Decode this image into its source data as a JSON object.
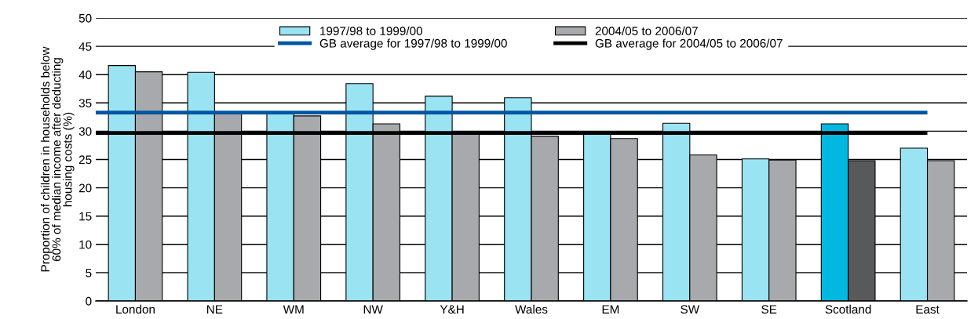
{
  "chart_data": {
    "type": "bar",
    "ylabel": "Proportion of children in households below\n60% of median income after deducting\nhousing costs (%)",
    "categories": [
      "London",
      "NE",
      "WM",
      "NW",
      "Y&H",
      "Wales",
      "EM",
      "SW",
      "SE",
      "Scotland",
      "East"
    ],
    "series": [
      {
        "name": "1997/98 to 1999/00",
        "color": "#9ae3f3",
        "colors": [
          "#9ae3f3",
          "#9ae3f3",
          "#9ae3f3",
          "#9ae3f3",
          "#9ae3f3",
          "#9ae3f3",
          "#9ae3f3",
          "#9ae3f3",
          "#9ae3f3",
          "#00b8e0",
          "#9ae3f3"
        ],
        "values": [
          41.6,
          40.4,
          33.3,
          38.4,
          36.2,
          35.9,
          29.7,
          31.4,
          25.1,
          31.3,
          27.0
        ]
      },
      {
        "name": "2004/05 to 2006/07",
        "color": "#a8a9ad",
        "colors": [
          "#a8a9ad",
          "#a8a9ad",
          "#a8a9ad",
          "#a8a9ad",
          "#a8a9ad",
          "#a8a9ad",
          "#a8a9ad",
          "#a8a9ad",
          "#a8a9ad",
          "#58595b",
          "#a8a9ad"
        ],
        "values": [
          40.5,
          33.3,
          32.7,
          31.3,
          29.7,
          29.1,
          28.7,
          25.8,
          24.9,
          24.8,
          24.8
        ]
      }
    ],
    "ref_lines": [
      {
        "axis": "y",
        "value": 33.3,
        "label": "GB average for 1997/98 to 1999/00",
        "color": "#0055a0"
      },
      {
        "axis": "y",
        "value": 29.7,
        "label": "GB average for 2004/05 to 2006/07",
        "color": "#000000"
      }
    ],
    "ylim": [
      0,
      50
    ],
    "yticks": [
      0,
      5,
      10,
      15,
      20,
      25,
      30,
      35,
      40,
      45,
      50
    ],
    "grid": "y",
    "legend": "top"
  }
}
